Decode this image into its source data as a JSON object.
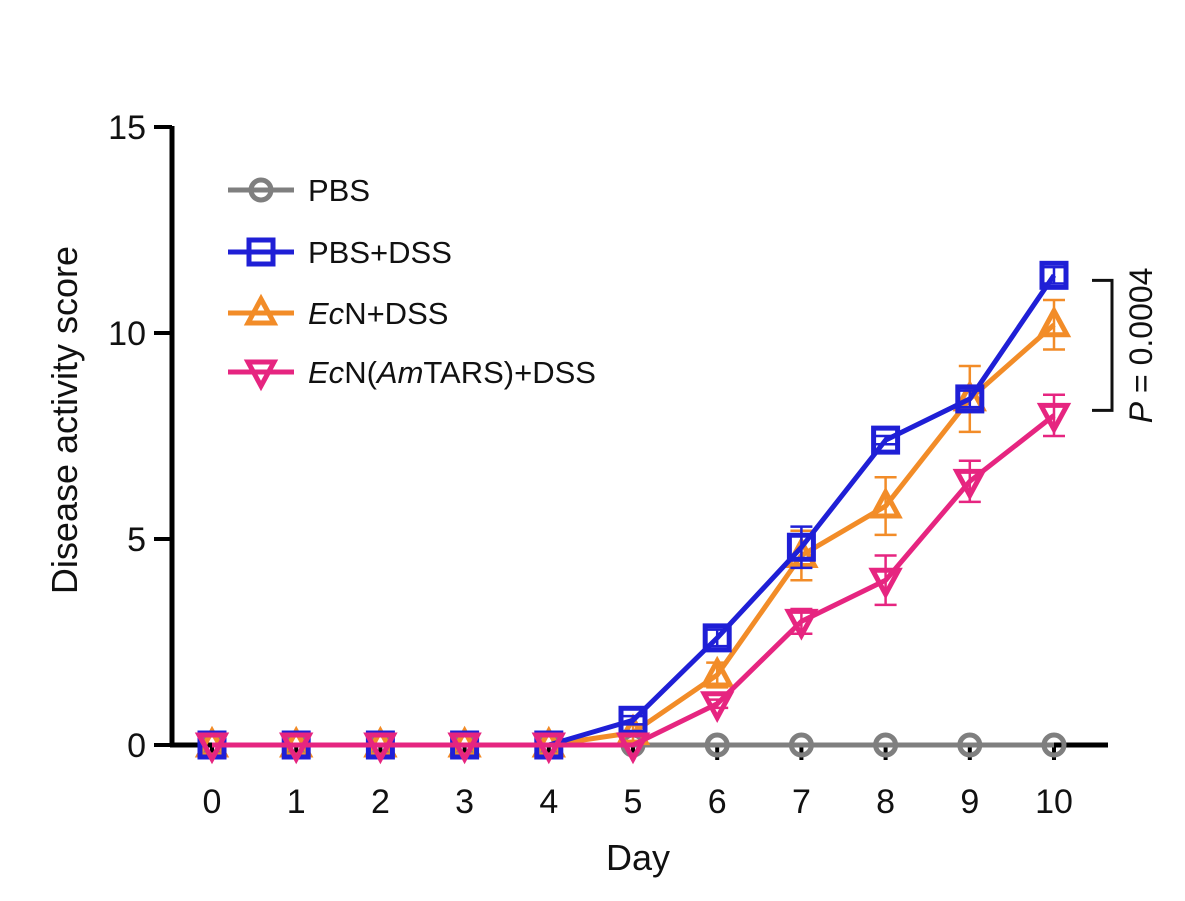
{
  "chart_data": {
    "type": "line",
    "xlabel": "Day",
    "ylabel": "Disease activity score",
    "xlim": [
      0,
      10
    ],
    "ylim": [
      0,
      15
    ],
    "x": [
      0,
      1,
      2,
      3,
      4,
      5,
      6,
      7,
      8,
      9,
      10
    ],
    "xticks": [
      "0",
      "1",
      "2",
      "3",
      "4",
      "5",
      "6",
      "7",
      "8",
      "9",
      "10"
    ],
    "yticks": [
      "0",
      "5",
      "10",
      "15"
    ],
    "yticks_values": [
      0,
      5,
      10,
      15
    ],
    "grid": false,
    "legend_position": "top-left",
    "series": [
      {
        "name": "PBS",
        "name_parts": [
          {
            "text": "PBS",
            "italic": false
          }
        ],
        "marker": "circle",
        "color": "#7f7f7f",
        "values": [
          0,
          0,
          0,
          0,
          0,
          0,
          0,
          0,
          0,
          0,
          0
        ],
        "errors": [
          0,
          0,
          0,
          0,
          0,
          0,
          0,
          0,
          0,
          0,
          0
        ]
      },
      {
        "name": "PBS+DSS",
        "name_parts": [
          {
            "text": "PBS+DSS",
            "italic": false
          }
        ],
        "marker": "square",
        "color": "#1f1fd6",
        "values": [
          0,
          0,
          0,
          0,
          0,
          0.6,
          2.6,
          4.8,
          7.4,
          8.4,
          11.4
        ],
        "errors": [
          0,
          0,
          0,
          0,
          0,
          0.1,
          0.2,
          0.5,
          0.1,
          0.2,
          0.2
        ]
      },
      {
        "name": "EcN+DSS",
        "name_parts": [
          {
            "text": "Ec",
            "italic": true
          },
          {
            "text": "N+DSS",
            "italic": false
          }
        ],
        "marker": "triangle-up",
        "color": "#f28c28",
        "values": [
          0,
          0,
          0,
          0,
          0,
          0.3,
          1.7,
          4.6,
          5.8,
          8.4,
          10.2
        ],
        "errors": [
          0,
          0,
          0,
          0,
          0,
          0.2,
          0.3,
          0.6,
          0.7,
          0.8,
          0.6
        ]
      },
      {
        "name": "EcN(AmTARS)+DSS",
        "name_parts": [
          {
            "text": "Ec",
            "italic": true
          },
          {
            "text": "N(",
            "italic": false
          },
          {
            "text": "Am",
            "italic": true
          },
          {
            "text": "TARS)+DSS",
            "italic": false
          }
        ],
        "marker": "triangle-down",
        "color": "#e62580",
        "values": [
          0,
          0,
          0,
          0,
          0,
          0,
          1.0,
          3.0,
          4.0,
          6.4,
          8.0
        ],
        "errors": [
          0,
          0,
          0,
          0,
          0,
          0,
          0.1,
          0.3,
          0.6,
          0.5,
          0.5
        ]
      }
    ],
    "annotation": {
      "p_label": "P",
      "p_value": " = 0.0004"
    }
  }
}
